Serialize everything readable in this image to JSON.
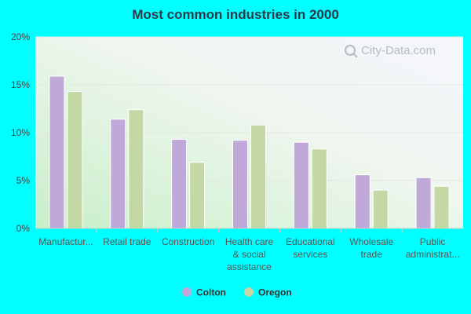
{
  "chart_data": {
    "type": "bar",
    "title": "Most common industries in 2000",
    "categories": [
      [
        "Manufactur..."
      ],
      [
        "Retail trade"
      ],
      [
        "Construction"
      ],
      [
        "Health care",
        "& social",
        "assistance"
      ],
      [
        "Educational",
        "services"
      ],
      [
        "Wholesale",
        "trade"
      ],
      [
        "Public",
        "administrat..."
      ]
    ],
    "series": [
      {
        "name": "Colton",
        "color": "#c0a8d8",
        "values": [
          15.9,
          11.4,
          9.3,
          9.2,
          9.0,
          5.6,
          5.3
        ]
      },
      {
        "name": "Oregon",
        "color": "#c4d8a6",
        "values": [
          14.3,
          12.4,
          6.9,
          10.8,
          8.3,
          4.0,
          4.4
        ]
      }
    ],
    "ylim": [
      0,
      20
    ],
    "yticks": [
      "0%",
      "5%",
      "10%",
      "15%",
      "20%"
    ],
    "grid": true,
    "legend": "bottom-center"
  },
  "watermark": "City-Data.com"
}
